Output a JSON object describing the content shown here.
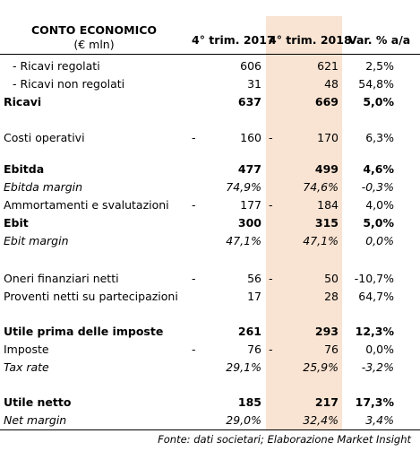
{
  "header": {
    "title": "CONTO ECONOMICO",
    "subtitle": "(€ mln)",
    "col1": "4° trim. 2017",
    "col2": "4° trim. 2018",
    "col3": "Var. % a/a"
  },
  "rows": [
    {
      "label": "- Ricavi regolati",
      "d1": "",
      "v1": "606",
      "d2": "",
      "v2": "621",
      "var": "2,5%"
    },
    {
      "label": "- Ricavi non regolati",
      "d1": "",
      "v1": "31",
      "d2": "",
      "v2": "48",
      "var": "54,8%"
    },
    {
      "label": "Ricavi",
      "d1": "",
      "v1": "637",
      "d2": "",
      "v2": "669",
      "var": "5,0%"
    },
    {
      "label": "Costi operativi",
      "d1": "-",
      "v1": "160",
      "d2": "-",
      "v2": "170",
      "var": "6,3%"
    },
    {
      "label": "Ebitda",
      "d1": "",
      "v1": "477",
      "d2": "",
      "v2": "499",
      "var": "4,6%"
    },
    {
      "label": "Ebitda margin",
      "d1": "",
      "v1": "74,9%",
      "d2": "",
      "v2": "74,6%",
      "var": "-0,3%"
    },
    {
      "label": "Ammortamenti e svalutazioni",
      "d1": "-",
      "v1": "177",
      "d2": "-",
      "v2": "184",
      "var": "4,0%"
    },
    {
      "label": "Ebit",
      "d1": "",
      "v1": "300",
      "d2": "",
      "v2": "315",
      "var": "5,0%"
    },
    {
      "label": "Ebit margin",
      "d1": "",
      "v1": "47,1%",
      "d2": "",
      "v2": "47,1%",
      "var": "0,0%"
    },
    {
      "label": "Oneri finanziari netti",
      "d1": "-",
      "v1": "56",
      "d2": "-",
      "v2": "50",
      "var": "-10,7%"
    },
    {
      "label": "Proventi netti su partecipazioni",
      "d1": "",
      "v1": "17",
      "d2": "",
      "v2": "28",
      "var": "64,7%"
    },
    {
      "label": "Utile prima delle imposte",
      "d1": "",
      "v1": "261",
      "d2": "",
      "v2": "293",
      "var": "12,3%"
    },
    {
      "label": "Imposte",
      "d1": "-",
      "v1": "76",
      "d2": "-",
      "v2": "76",
      "var": "0,0%"
    },
    {
      "label": "Tax rate",
      "d1": "",
      "v1": "29,1%",
      "d2": "",
      "v2": "25,9%",
      "var": "-3,2%"
    },
    {
      "label": "Utile netto",
      "d1": "",
      "v1": "185",
      "d2": "",
      "v2": "217",
      "var": "17,3%"
    },
    {
      "label": "Net margin",
      "d1": "",
      "v1": "29,0%",
      "d2": "",
      "v2": "32,4%",
      "var": "3,4%"
    }
  ],
  "footer": "Fonte: dati societari; Elaborazione Market Insight"
}
